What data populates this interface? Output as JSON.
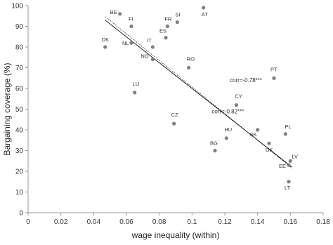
{
  "chart_data": {
    "type": "scatter",
    "xlabel": "wage inequality (within)",
    "ylabel": "Bargaining coverage (%)",
    "xlim": [
      0,
      0.18
    ],
    "ylim": [
      0,
      100
    ],
    "x_ticks": [
      "0",
      "0.02",
      "0.04",
      "0.06",
      "0.08",
      "0.1",
      "0.12",
      "0.14",
      "0.16",
      "0.18"
    ],
    "y_ticks": [
      "0",
      "10",
      "20",
      "30",
      "40",
      "50",
      "60",
      "70",
      "80",
      "90",
      "100"
    ],
    "grid": false,
    "points": [
      {
        "label": "BE",
        "x": 0.056,
        "y": 96
      },
      {
        "label": "FI",
        "x": 0.063,
        "y": 90
      },
      {
        "label": "FR",
        "x": 0.085,
        "y": 90
      },
      {
        "label": "SI",
        "x": 0.091,
        "y": 92
      },
      {
        "label": "AT",
        "x": 0.107,
        "y": 99
      },
      {
        "label": "ES",
        "x": 0.084,
        "y": 84.5
      },
      {
        "label": "IT",
        "x": 0.076,
        "y": 80
      },
      {
        "label": "NL",
        "x": 0.063,
        "y": 82
      },
      {
        "label": "DK",
        "x": 0.047,
        "y": 80
      },
      {
        "label": "NO",
        "x": 0.076,
        "y": 74
      },
      {
        "label": "RO",
        "x": 0.098,
        "y": 70
      },
      {
        "label": "PT",
        "x": 0.15,
        "y": 65
      },
      {
        "label": "LU",
        "x": 0.065,
        "y": 58
      },
      {
        "label": "CY",
        "x": 0.127,
        "y": 52
      },
      {
        "label": "CZ",
        "x": 0.089,
        "y": 43
      },
      {
        "label": "SK",
        "x": 0.14,
        "y": 40
      },
      {
        "label": "PL",
        "x": 0.157,
        "y": 38
      },
      {
        "label": "HU",
        "x": 0.121,
        "y": 36
      },
      {
        "label": "UK",
        "x": 0.147,
        "y": 33.5
      },
      {
        "label": "BG",
        "x": 0.114,
        "y": 30
      },
      {
        "label": "LV",
        "x": 0.16,
        "y": 25
      },
      {
        "label": "EE",
        "x": 0.159,
        "y": 23
      },
      {
        "label": "LT",
        "x": 0.159,
        "y": 15
      }
    ],
    "trendlines": [
      {
        "style": "solid",
        "x": [
          0.047,
          0.161
        ],
        "y": [
          93.0,
          22.0
        ]
      },
      {
        "style": "dotted",
        "x": [
          0.047,
          0.161
        ],
        "y": [
          94.7,
          21.5
        ]
      }
    ],
    "annotations": [
      {
        "text": "corr=-0.78***",
        "x": 0.123,
        "y": 63
      },
      {
        "text": "corr=-0.82***",
        "x": 0.112,
        "y": 48
      }
    ],
    "colors": {
      "point": "#808080",
      "line": "#222222",
      "axis": "#999999"
    }
  }
}
